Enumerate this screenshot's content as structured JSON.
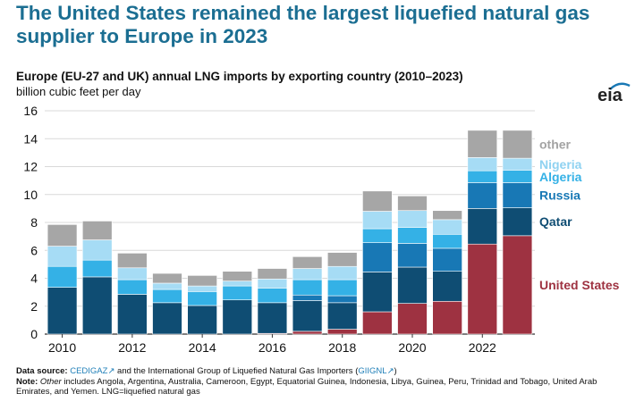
{
  "headline": "The United States remained the largest liquefied natural gas supplier to Europe in 2023",
  "logo": {
    "text": "eia"
  },
  "footer": {
    "source_label": "Data source:",
    "source_link1": "CEDIGAZ",
    "source_mid": "and the International Group of Liquefied Natural Gas Importers (",
    "source_link2": "GIIGNL",
    "source_end": ")",
    "note_label": "Note:",
    "note_other": "Other",
    "note_text": "includes Angola, Argentina, Australia, Cameroon, Egypt, Equatorial Guinea, Indonesia, Libya, Guinea, Peru, Trinidad and Tobago, United Arab Emirates, and Yemen. LNG=liquefied natural gas"
  },
  "chart_data": {
    "type": "bar",
    "stacked": true,
    "title": "Europe (EU-27 and UK) annual LNG imports by exporting country (2010–2023)",
    "ylabel": "billion cubic feet per day",
    "ylim": [
      0,
      16
    ],
    "yticks": [
      0,
      2,
      4,
      6,
      8,
      10,
      12,
      14,
      16
    ],
    "xtick_labels": [
      "2010",
      "2012",
      "2014",
      "2016",
      "2018",
      "2020",
      "2022"
    ],
    "categories": [
      "2010",
      "2011",
      "2012",
      "2013",
      "2014",
      "2015",
      "2016",
      "2017",
      "2018",
      "2019",
      "2020",
      "2021",
      "2022",
      "2023"
    ],
    "grid": true,
    "legend_placement": "right, labels beside the last bar",
    "series": [
      {
        "name": "United States",
        "color": "#9e3241",
        "label_color": "#9e3241",
        "values": [
          0,
          0,
          0,
          0,
          0,
          0,
          0.05,
          0.2,
          0.35,
          1.6,
          2.2,
          2.35,
          6.45,
          7.05
        ]
      },
      {
        "name": "Qatar",
        "color": "#0f4d73",
        "label_color": "#0f4d73",
        "values": [
          3.35,
          4.1,
          2.85,
          2.25,
          2.05,
          2.45,
          2.2,
          2.2,
          1.9,
          2.85,
          2.6,
          2.15,
          2.55,
          2.0
        ]
      },
      {
        "name": "Russia",
        "color": "#1878b5",
        "label_color": "#1878b5",
        "values": [
          0,
          0,
          0,
          0,
          0,
          0,
          0,
          0.4,
          0.5,
          2.1,
          1.7,
          1.65,
          1.85,
          1.8
        ]
      },
      {
        "name": "Algeria",
        "color": "#34b1e6",
        "label_color": "#34b1e6",
        "values": [
          1.5,
          1.2,
          1.05,
          0.95,
          1.0,
          1.0,
          1.05,
          1.1,
          1.15,
          1.0,
          1.15,
          1.0,
          0.85,
          0.9
        ]
      },
      {
        "name": "Nigeria",
        "color": "#a6dcf5",
        "label_color": "#8fd2f1",
        "values": [
          1.45,
          1.45,
          0.85,
          0.45,
          0.4,
          0.35,
          0.65,
          0.8,
          0.95,
          1.25,
          1.2,
          1.05,
          0.95,
          0.85
        ]
      },
      {
        "name": "other",
        "color": "#a6a6a6",
        "label_color": "#a3a3a3",
        "values": [
          1.55,
          1.35,
          1.05,
          0.7,
          0.75,
          0.7,
          0.75,
          0.85,
          1.0,
          1.45,
          1.05,
          0.65,
          1.95,
          2.0
        ]
      }
    ]
  }
}
